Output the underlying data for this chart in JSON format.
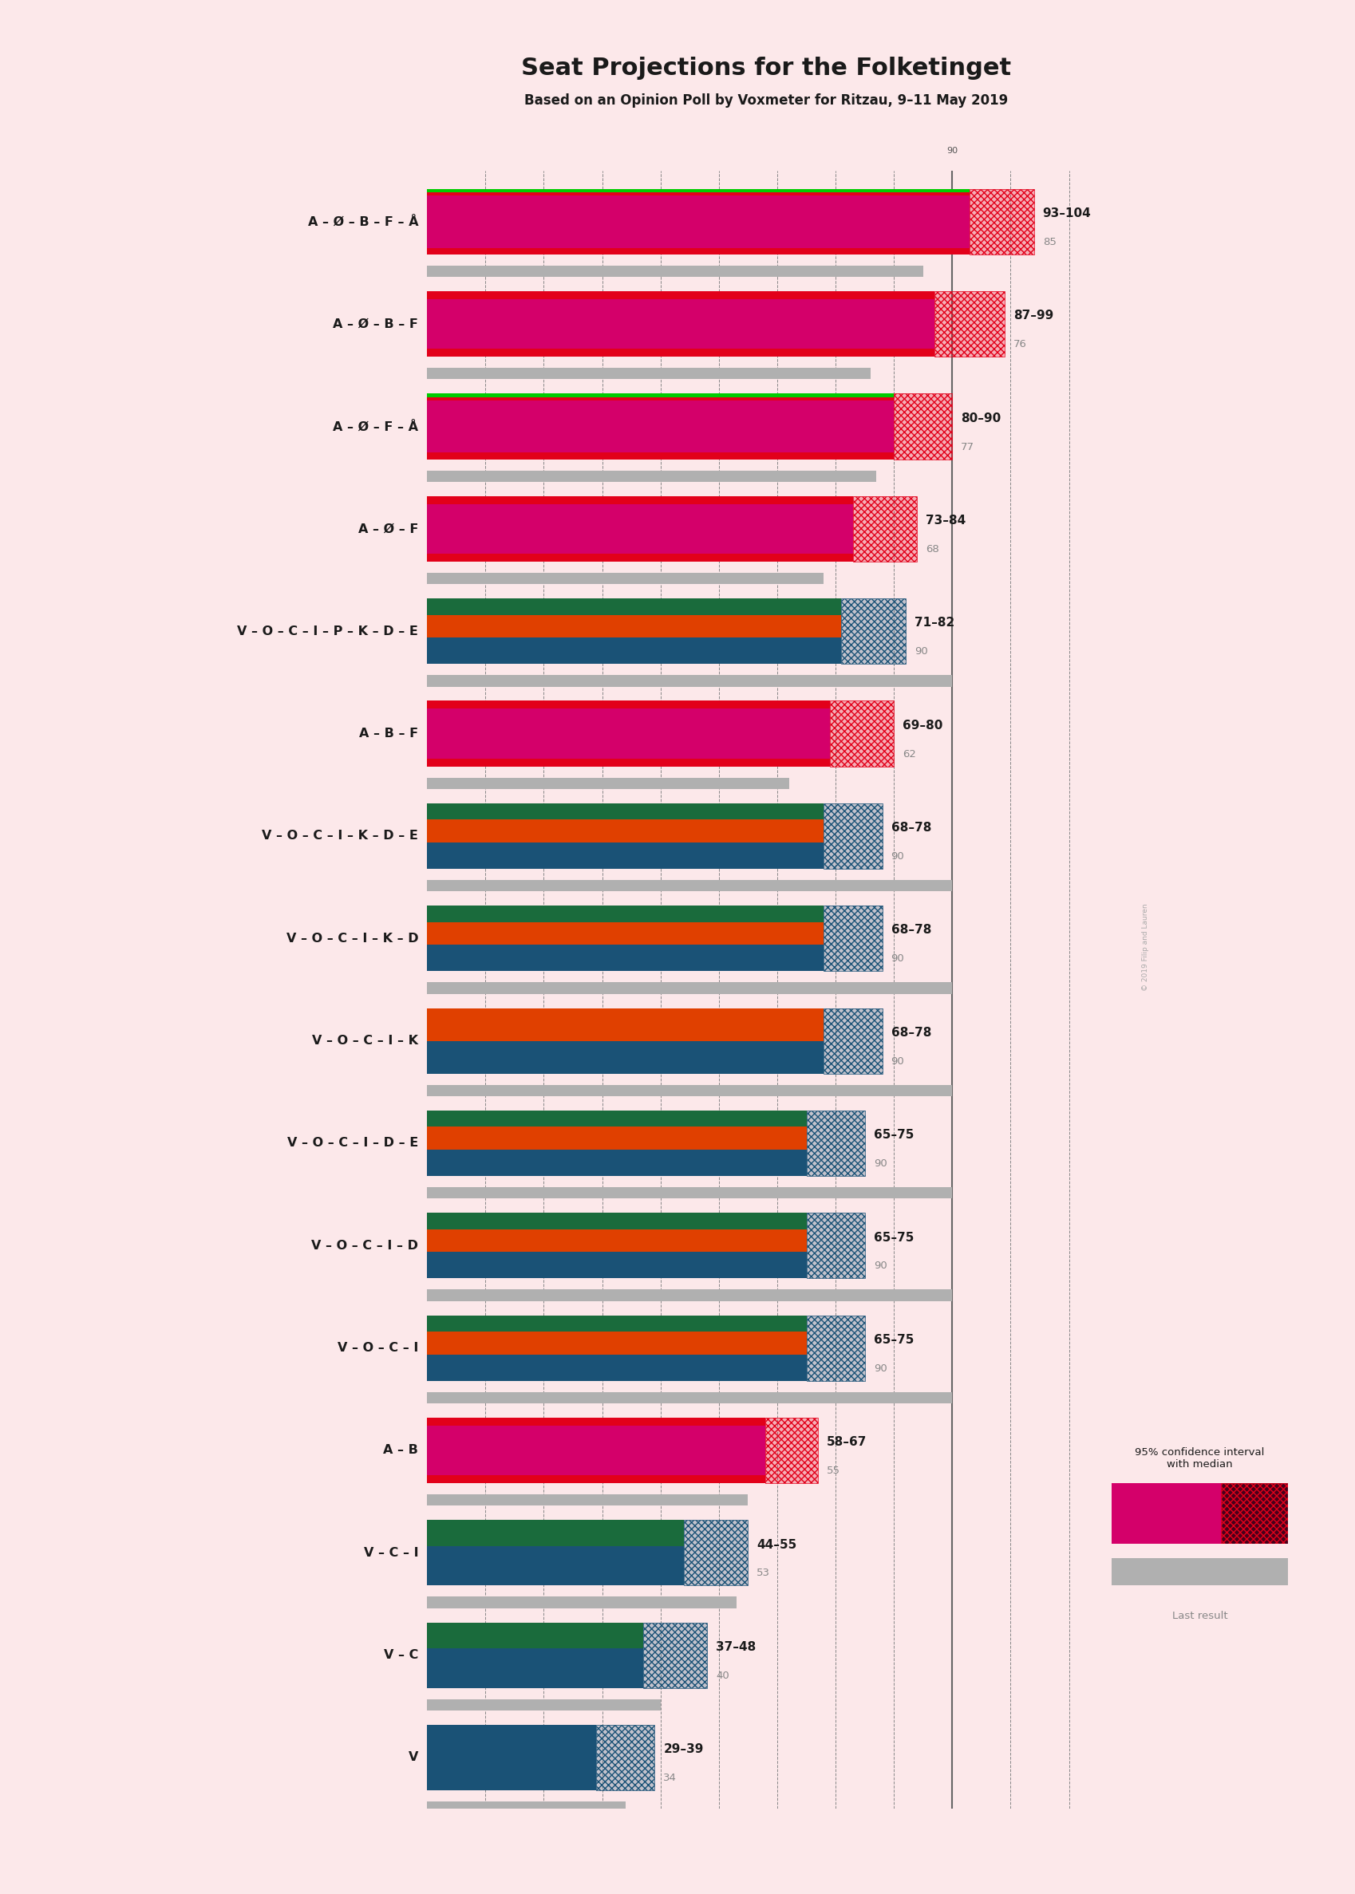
{
  "title": "Seat Projections for the Folketinget",
  "subtitle": "Based on an Opinion Poll by Voxmeter for Ritzau, 9–11 May 2019",
  "bg": "#fce8ea",
  "coalitions": [
    {
      "label": "A – Ø – B – F – Å",
      "ul": false,
      "lo": 93,
      "hi": 104,
      "med": 85,
      "last": 85,
      "btype": "left_rg"
    },
    {
      "label": "A – Ø – B – F",
      "ul": false,
      "lo": 87,
      "hi": 99,
      "med": 76,
      "last": 76,
      "btype": "left_m"
    },
    {
      "label": "A – Ø – F – Å",
      "ul": false,
      "lo": 80,
      "hi": 90,
      "med": 77,
      "last": 77,
      "btype": "left_rg"
    },
    {
      "label": "A – Ø – F",
      "ul": false,
      "lo": 73,
      "hi": 84,
      "med": 68,
      "last": 68,
      "btype": "left_r"
    },
    {
      "label": "V – O – C – I – P – K – D – E",
      "ul": false,
      "lo": 71,
      "hi": 82,
      "med": 90,
      "last": 90,
      "btype": "right_bog"
    },
    {
      "label": "A – B – F",
      "ul": false,
      "lo": 69,
      "hi": 80,
      "med": 62,
      "last": 62,
      "btype": "left_m"
    },
    {
      "label": "V – O – C – I – K – D – E",
      "ul": false,
      "lo": 68,
      "hi": 78,
      "med": 90,
      "last": 90,
      "btype": "right_bog"
    },
    {
      "label": "V – O – C – I – K – D",
      "ul": false,
      "lo": 68,
      "hi": 78,
      "med": 90,
      "last": 90,
      "btype": "right_bog"
    },
    {
      "label": "V – O – C – I – K",
      "ul": false,
      "lo": 68,
      "hi": 78,
      "med": 90,
      "last": 90,
      "btype": "right_bo"
    },
    {
      "label": "V – O – C – I – D – E",
      "ul": false,
      "lo": 65,
      "hi": 75,
      "med": 90,
      "last": 90,
      "btype": "right_bog"
    },
    {
      "label": "V – O – C – I – D",
      "ul": false,
      "lo": 65,
      "hi": 75,
      "med": 90,
      "last": 90,
      "btype": "right_bog"
    },
    {
      "label": "V – O – C – I",
      "ul": true,
      "lo": 65,
      "hi": 75,
      "med": 90,
      "last": 90,
      "btype": "right_bog"
    },
    {
      "label": "A – B",
      "ul": false,
      "lo": 58,
      "hi": 67,
      "med": 55,
      "last": 55,
      "btype": "left_r"
    },
    {
      "label": "V – C – I",
      "ul": true,
      "lo": 44,
      "hi": 55,
      "med": 53,
      "last": 53,
      "btype": "right_bg"
    },
    {
      "label": "V – C",
      "ul": false,
      "lo": 37,
      "hi": 48,
      "med": 40,
      "last": 40,
      "btype": "right_bg"
    },
    {
      "label": "V",
      "ul": false,
      "lo": 29,
      "hi": 39,
      "med": 34,
      "last": 34,
      "btype": "right_b"
    }
  ],
  "xmin": 0,
  "xmax": 115,
  "majority": 90,
  "grid_step": 10,
  "red": "#e2001a",
  "magenta": "#d4006a",
  "green": "#00cc00",
  "blue": "#1a5276",
  "orange": "#e04000",
  "dkgreen": "#1a6b3c",
  "gray": "#b0b0b0",
  "dark": "#1a1a1a"
}
